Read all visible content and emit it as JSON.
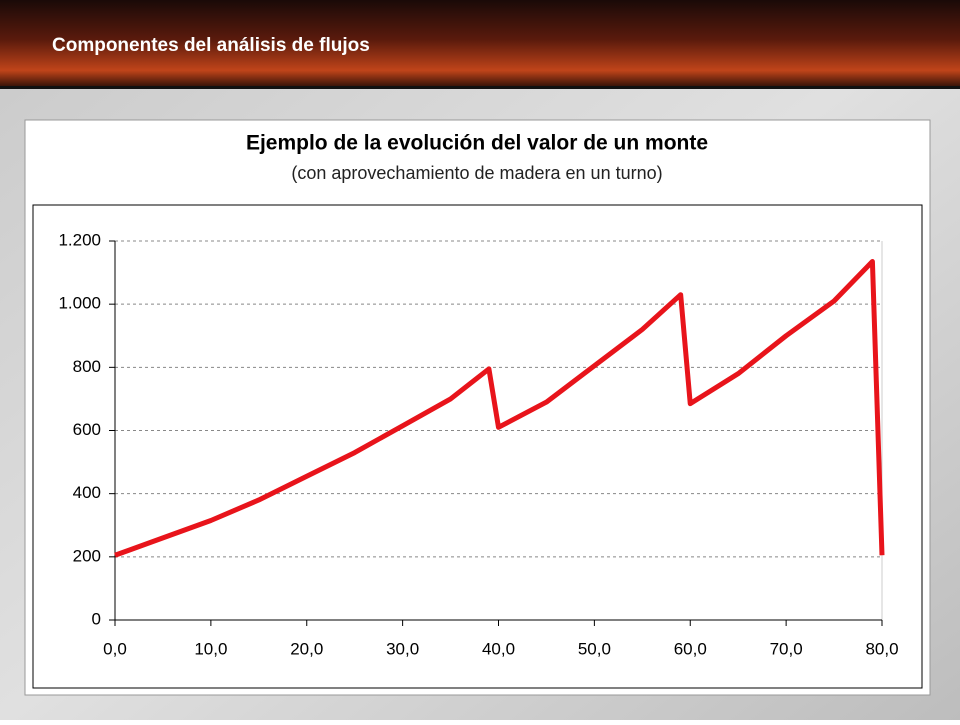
{
  "header": {
    "title": "Componentes del análisis de flujos"
  },
  "chart_data": {
    "type": "line",
    "title": "Ejemplo de la evolución del valor de un monte",
    "subtitle": "(con aprovechamiento de madera en un turno)",
    "x": [
      0,
      5,
      10,
      15,
      20,
      25,
      30,
      35,
      39,
      40,
      45,
      50,
      55,
      59,
      60,
      65,
      70,
      75,
      79,
      80
    ],
    "series": [
      {
        "color": "#e8141b",
        "values": [
          205,
          260,
          315,
          380,
          455,
          530,
          615,
          700,
          795,
          610,
          690,
          805,
          920,
          1030,
          685,
          780,
          900,
          1010,
          1135,
          205
        ]
      }
    ],
    "xlim": [
      0,
      80
    ],
    "xticks": [
      {
        "value": 0,
        "label": "0,0"
      },
      {
        "value": 10,
        "label": "10,0"
      },
      {
        "value": 20,
        "label": "20,0"
      },
      {
        "value": 30,
        "label": "30,0"
      },
      {
        "value": 40,
        "label": "40,0"
      },
      {
        "value": 50,
        "label": "50,0"
      },
      {
        "value": 60,
        "label": "60,0"
      },
      {
        "value": 70,
        "label": "70,0"
      },
      {
        "value": 80,
        "label": "80,0"
      }
    ],
    "ylim": [
      0,
      1200
    ],
    "yticks": [
      0,
      200,
      400,
      600,
      800,
      {
        "value": 1000,
        "label": "1.000"
      },
      {
        "value": 1200,
        "label": "1.200"
      }
    ],
    "grid": true
  }
}
